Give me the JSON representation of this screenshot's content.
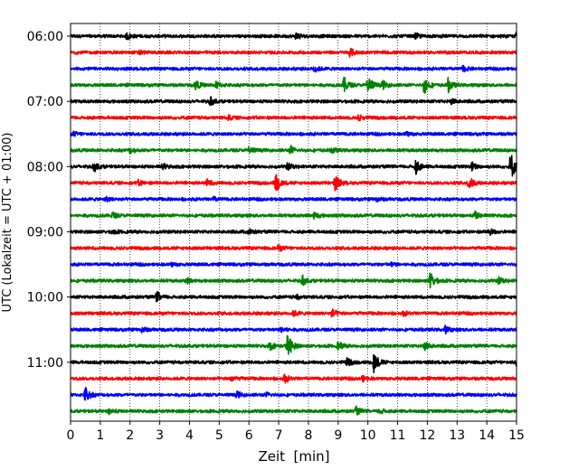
{
  "chart_data": {
    "type": "line",
    "title": "",
    "xlabel": "Zeit  [min]",
    "ylabel": "UTC (Lokalzeit = UTC + 01:00)",
    "xlim": [
      0,
      15
    ],
    "x_ticks": [
      0,
      1,
      2,
      3,
      4,
      5,
      6,
      7,
      8,
      9,
      10,
      11,
      12,
      13,
      14,
      15
    ],
    "grid": "vertical dotted lines at each minute",
    "y_tick_labels": [
      "06:00",
      "07:00",
      "08:00",
      "09:00",
      "10:00",
      "11:00"
    ],
    "trace_minutes": 15,
    "color_cycle": [
      "#000000",
      "#ff0000",
      "#0000ff",
      "#008000"
    ],
    "traces": [
      {
        "start": "06:00",
        "events": [
          {
            "t": 1.9,
            "amp": 0.25
          },
          {
            "t": 7.6,
            "amp": 0.3
          },
          {
            "t": 11.6,
            "amp": 0.2
          },
          {
            "t": 15.0,
            "amp": 0.3
          }
        ]
      },
      {
        "start": "06:15",
        "events": [
          {
            "t": 2.3,
            "amp": 0.15
          },
          {
            "t": 9.4,
            "amp": 0.3
          }
        ]
      },
      {
        "start": "06:30",
        "events": [
          {
            "t": 8.2,
            "amp": 0.25
          },
          {
            "t": 13.2,
            "amp": 0.2
          }
        ]
      },
      {
        "start": "06:45",
        "events": [
          {
            "t": 4.2,
            "amp": 0.35
          },
          {
            "t": 4.9,
            "amp": 0.25
          },
          {
            "t": 9.2,
            "amp": 0.6
          },
          {
            "t": 10.0,
            "amp": 0.8
          },
          {
            "t": 10.5,
            "amp": 0.3
          },
          {
            "t": 11.9,
            "amp": 0.7
          },
          {
            "t": 12.7,
            "amp": 0.5
          }
        ]
      },
      {
        "start": "07:00",
        "events": [
          {
            "t": 4.7,
            "amp": 0.3
          },
          {
            "t": 12.8,
            "amp": 0.2
          }
        ]
      },
      {
        "start": "07:15",
        "events": [
          {
            "t": 5.3,
            "amp": 0.15
          },
          {
            "t": 9.7,
            "amp": 0.2
          }
        ]
      },
      {
        "start": "07:30",
        "events": [
          {
            "t": 0.1,
            "amp": 0.15
          },
          {
            "t": 11.3,
            "amp": 0.15
          }
        ]
      },
      {
        "start": "07:45",
        "events": [
          {
            "t": 2.0,
            "amp": 0.2
          },
          {
            "t": 6.0,
            "amp": 0.3
          },
          {
            "t": 7.4,
            "amp": 0.3
          },
          {
            "t": 8.8,
            "amp": 0.2
          }
        ]
      },
      {
        "start": "08:00",
        "events": [
          {
            "t": 0.8,
            "amp": 0.35
          },
          {
            "t": 3.1,
            "amp": 0.2
          },
          {
            "t": 7.3,
            "amp": 0.25
          },
          {
            "t": 11.6,
            "amp": 0.6
          },
          {
            "t": 13.5,
            "amp": 0.3
          },
          {
            "t": 14.8,
            "amp": 1.2
          }
        ]
      },
      {
        "start": "08:15",
        "events": [
          {
            "t": 2.3,
            "amp": 0.2
          },
          {
            "t": 4.6,
            "amp": 0.25
          },
          {
            "t": 6.9,
            "amp": 0.8
          },
          {
            "t": 8.9,
            "amp": 0.6
          },
          {
            "t": 13.4,
            "amp": 0.5
          }
        ]
      },
      {
        "start": "08:30",
        "events": [
          {
            "t": 1.2,
            "amp": 0.15
          },
          {
            "t": 4.8,
            "amp": 0.15
          },
          {
            "t": 10.3,
            "amp": 0.15
          }
        ]
      },
      {
        "start": "08:45",
        "events": [
          {
            "t": 1.4,
            "amp": 0.25
          },
          {
            "t": 8.2,
            "amp": 0.25
          },
          {
            "t": 13.6,
            "amp": 0.3
          }
        ]
      },
      {
        "start": "09:00",
        "events": [
          {
            "t": 1.4,
            "amp": 0.15
          },
          {
            "t": 6.0,
            "amp": 0.2
          },
          {
            "t": 14.1,
            "amp": 0.25
          }
        ]
      },
      {
        "start": "09:15",
        "events": [
          {
            "t": 7.0,
            "amp": 0.2
          }
        ]
      },
      {
        "start": "09:30",
        "events": [
          {
            "t": 3.4,
            "amp": 0.12
          },
          {
            "t": 10.8,
            "amp": 0.12
          }
        ]
      },
      {
        "start": "09:45",
        "events": [
          {
            "t": 3.9,
            "amp": 0.2
          },
          {
            "t": 7.8,
            "amp": 0.35
          },
          {
            "t": 12.1,
            "amp": 0.7
          },
          {
            "t": 14.4,
            "amp": 0.25
          }
        ]
      },
      {
        "start": "10:00",
        "events": [
          {
            "t": 2.9,
            "amp": 0.4
          },
          {
            "t": 7.6,
            "amp": 0.15
          }
        ]
      },
      {
        "start": "10:15",
        "events": [
          {
            "t": 7.5,
            "amp": 0.2
          },
          {
            "t": 8.8,
            "amp": 0.3
          },
          {
            "t": 11.2,
            "amp": 0.15
          }
        ]
      },
      {
        "start": "10:30",
        "events": [
          {
            "t": 2.4,
            "amp": 0.2
          },
          {
            "t": 7.1,
            "amp": 0.25
          },
          {
            "t": 12.6,
            "amp": 0.25
          }
        ]
      },
      {
        "start": "10:45",
        "events": [
          {
            "t": 6.7,
            "amp": 0.3
          },
          {
            "t": 7.3,
            "amp": 1.0
          },
          {
            "t": 9.0,
            "amp": 0.3
          },
          {
            "t": 11.9,
            "amp": 0.35
          }
        ]
      },
      {
        "start": "11:00",
        "events": [
          {
            "t": 9.3,
            "amp": 0.3
          },
          {
            "t": 10.2,
            "amp": 0.9
          },
          {
            "t": 15.0,
            "amp": 0.3
          }
        ]
      },
      {
        "start": "11:15",
        "events": [
          {
            "t": 5.4,
            "amp": 0.2
          },
          {
            "t": 7.2,
            "amp": 0.3
          },
          {
            "t": 9.8,
            "amp": 0.2
          }
        ]
      },
      {
        "start": "11:30",
        "events": [
          {
            "t": 0.5,
            "amp": 0.6
          },
          {
            "t": 5.6,
            "amp": 0.2
          },
          {
            "t": 6.6,
            "amp": 0.15
          }
        ]
      },
      {
        "start": "11:45",
        "events": [
          {
            "t": 1.3,
            "amp": 0.2
          },
          {
            "t": 9.6,
            "amp": 0.3
          },
          {
            "t": 10.4,
            "amp": 0.2
          }
        ]
      }
    ]
  }
}
